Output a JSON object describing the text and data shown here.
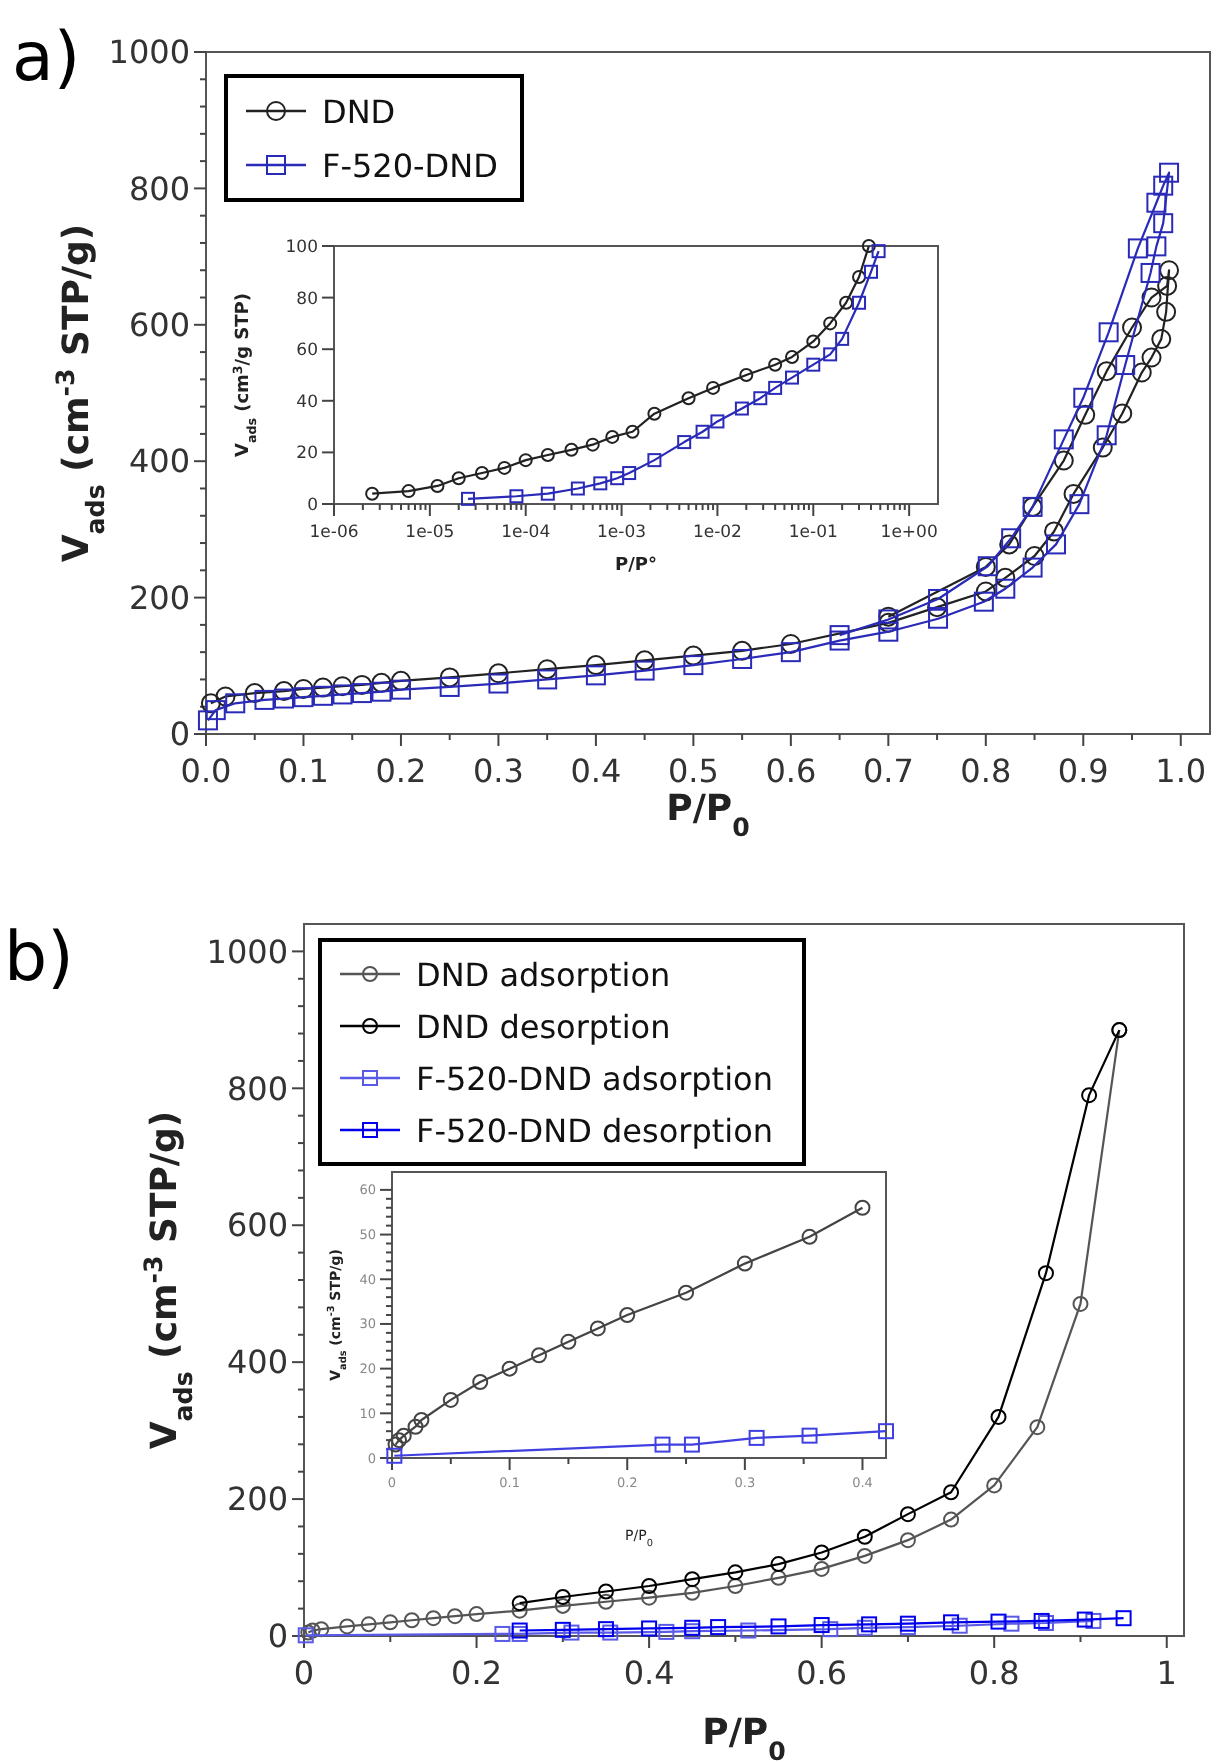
{
  "chart_data": [
    {
      "type": "line",
      "annotations": [
        "a)"
      ],
      "xlabel": "P/P$_{0}$",
      "ylabel": "V$_{ads}$ (cm$^{-3}$ STP/g)",
      "xlim": [
        0,
        1.03
      ],
      "ylim": [
        0,
        1000
      ],
      "xticks": [
        {
          "value": 0,
          "label": "0.0"
        },
        0.1,
        0.2,
        0.3,
        0.4,
        0.5,
        0.6,
        0.7,
        0.8,
        0.9,
        {
          "value": 1,
          "label": "1.0"
        }
      ],
      "yticks": [
        0,
        200,
        400,
        600,
        800,
        1000
      ],
      "legend": "top left",
      "grid": false,
      "series": [
        {
          "name": "DND",
          "color": "#222222",
          "marker": "circle",
          "x": [
            0.005,
            0.02,
            0.05,
            0.08,
            0.1,
            0.12,
            0.14,
            0.16,
            0.18,
            0.2,
            0.25,
            0.3,
            0.35,
            0.4,
            0.45,
            0.5,
            0.55,
            0.6,
            0.7,
            0.75,
            0.8,
            0.82,
            0.85,
            0.87,
            0.89,
            0.92,
            0.94,
            0.96,
            0.97,
            0.98,
            0.985,
            0.988,
            0.986,
            0.97,
            0.95,
            0.924,
            0.902,
            0.88,
            0.848,
            0.824,
            0.8,
            0.7
          ],
          "values": [
            45,
            55,
            60,
            63,
            66,
            68,
            70,
            72,
            75,
            78,
            83,
            89,
            95,
            101,
            108,
            115,
            122,
            132,
            163,
            186,
            209,
            229,
            261,
            297,
            352,
            420,
            470,
            530,
            552,
            579,
            619,
            680,
            657,
            640,
            596,
            532,
            468,
            401,
            333,
            278,
            245,
            172
          ]
        },
        {
          "name": "F-520-DND",
          "color": "#2a2ab8",
          "marker": "square",
          "x": [
            0.002,
            0.01,
            0.03,
            0.06,
            0.08,
            0.1,
            0.12,
            0.14,
            0.16,
            0.18,
            0.2,
            0.25,
            0.3,
            0.35,
            0.4,
            0.45,
            0.5,
            0.55,
            0.6,
            0.65,
            0.7,
            0.751,
            0.798,
            0.82,
            0.848,
            0.872,
            0.896,
            0.924,
            0.943,
            0.969,
            0.975,
            0.982,
            0.988,
            0.982,
            0.975,
            0.956,
            0.926,
            0.9,
            0.88,
            0.848,
            0.826,
            0.802,
            0.751,
            0.7,
            0.65
          ],
          "values": [
            20,
            35,
            45,
            50,
            52,
            54,
            56,
            58,
            60,
            62,
            65,
            69,
            74,
            80,
            86,
            93,
            101,
            110,
            120,
            137,
            150,
            169,
            194,
            213,
            244,
            278,
            337,
            438,
            541,
            676,
            715,
            749,
            823,
            804,
            779,
            712,
            589,
            493,
            432,
            333,
            287,
            246,
            198,
            168,
            145
          ]
        }
      ]
    },
    {
      "type": "line",
      "xlabel": "P/P°",
      "ylabel": "V$_{ads}$ (cm$^{3}$/g STP)",
      "log": "x",
      "xlim": [
        1e-06,
        2
      ],
      "ylim": [
        0,
        100
      ],
      "xticks": [
        {
          "value": 1e-06,
          "label": "1e-06"
        },
        {
          "value": 1e-05,
          "label": "1e-05"
        },
        {
          "value": 0.0001,
          "label": "1e-04"
        },
        {
          "value": 0.001,
          "label": "1e-03"
        },
        {
          "value": 0.01,
          "label": "1e-02"
        },
        {
          "value": 0.1,
          "label": "1e-01"
        },
        {
          "value": 1,
          "label": "1e+00"
        }
      ],
      "yticks": [
        0,
        20,
        40,
        60,
        80,
        100
      ],
      "legend": false,
      "grid": false,
      "series": [
        {
          "color": "#222222",
          "marker": "circle",
          "x": [
            2.5e-06,
            6e-06,
            1.2e-05,
            2e-05,
            3.5e-05,
            6e-05,
            0.0001,
            0.00017,
            0.0003,
            0.0005,
            0.0008,
            0.0013,
            0.0022,
            0.005,
            0.009,
            0.02,
            0.04,
            0.06,
            0.1,
            0.15,
            0.22,
            0.3,
            0.38
          ],
          "values": [
            4,
            5,
            7,
            10,
            12,
            14,
            17,
            19,
            21,
            23,
            26,
            28,
            35,
            41,
            45,
            50,
            54,
            57,
            63,
            70,
            78,
            88,
            100
          ]
        },
        {
          "color": "#2a2ab8",
          "marker": "square",
          "x": [
            2.5e-05,
            8e-05,
            0.00017,
            0.00035,
            0.0006,
            0.0009,
            0.0012,
            0.0022,
            0.0045,
            0.007,
            0.01,
            0.018,
            0.028,
            0.04,
            0.06,
            0.1,
            0.15,
            0.2,
            0.3,
            0.4,
            0.48
          ],
          "values": [
            2,
            3,
            4,
            6,
            8,
            10,
            12,
            17,
            24,
            28,
            32,
            37,
            41,
            45,
            49,
            54,
            58,
            64,
            78,
            90,
            98
          ]
        }
      ]
    },
    {
      "type": "line",
      "annotations": [
        "b)"
      ],
      "xlabel": "P/P$_{0}$",
      "ylabel": "V$_{ads}$ (cm$^{-3}$ STP/g)",
      "xlim": [
        0,
        1.02
      ],
      "ylim": [
        0,
        1040
      ],
      "xticks": [
        0,
        0.2,
        0.4,
        0.6,
        0.8,
        1
      ],
      "yticks": [
        0,
        200,
        400,
        600,
        800,
        1000
      ],
      "legend": "top left",
      "grid": false,
      "series": [
        {
          "name": "DND adsorption",
          "color": "#555555",
          "marker": "circle",
          "x": [
            0.005,
            0.01,
            0.02,
            0.05,
            0.075,
            0.1,
            0.125,
            0.15,
            0.175,
            0.2,
            0.25,
            0.3,
            0.35,
            0.4,
            0.45,
            0.5,
            0.55,
            0.6,
            0.65,
            0.7,
            0.75,
            0.8,
            0.85,
            0.9,
            0.945
          ],
          "values": [
            5,
            8,
            10,
            14,
            17,
            20,
            23,
            26,
            29,
            32,
            37,
            44,
            50,
            56,
            63,
            73,
            85,
            98,
            117,
            140,
            170,
            220,
            305,
            485,
            885
          ]
        },
        {
          "name": "DND desorption",
          "color": "#000000",
          "marker": "circle",
          "x": [
            0.945,
            0.91,
            0.86,
            0.805,
            0.75,
            0.7,
            0.65,
            0.6,
            0.55,
            0.5,
            0.45,
            0.4,
            0.35,
            0.3,
            0.25
          ],
          "values": [
            885,
            790,
            530,
            320,
            210,
            178,
            145,
            122,
            105,
            93,
            83,
            73,
            65,
            57,
            48
          ]
        },
        {
          "name": "F-520-DND adsorption",
          "color": "#5a5ae6",
          "marker": "square",
          "x": [
            0.002,
            0.23,
            0.25,
            0.31,
            0.355,
            0.42,
            0.45,
            0.515,
            0.61,
            0.65,
            0.7,
            0.76,
            0.82,
            0.86,
            0.915
          ],
          "values": [
            1,
            3,
            3,
            5,
            5,
            6,
            7,
            8,
            10,
            12,
            13,
            15,
            18,
            19,
            22
          ]
        },
        {
          "name": "F-520-DND desorption",
          "color": "#0000ee",
          "marker": "square",
          "x": [
            0.95,
            0.905,
            0.855,
            0.805,
            0.75,
            0.7,
            0.655,
            0.6,
            0.55,
            0.48,
            0.45,
            0.4,
            0.35,
            0.3,
            0.25
          ],
          "values": [
            26,
            24,
            22,
            21,
            20,
            18,
            17,
            16,
            14,
            13,
            12,
            11,
            10,
            9,
            8
          ]
        }
      ]
    },
    {
      "type": "line",
      "xlabel": "P/P$_{0}$",
      "ylabel": "V$_{ads}$ (cm$^{-3}$ STP/g)",
      "xlim": [
        0,
        0.42
      ],
      "ylim": [
        0,
        64
      ],
      "xticks": [
        0,
        0.1,
        0.2,
        0.3,
        0.4
      ],
      "yticks": [
        0,
        10,
        20,
        30,
        40,
        50,
        60
      ],
      "legend": false,
      "grid": false,
      "series": [
        {
          "color": "#444444",
          "marker": "circle",
          "x": [
            0.003,
            0.006,
            0.01,
            0.02,
            0.025,
            0.05,
            0.075,
            0.1,
            0.125,
            0.15,
            0.175,
            0.2,
            0.25,
            0.3,
            0.355,
            0.4
          ],
          "values": [
            3,
            4,
            5,
            7,
            8.5,
            13,
            17,
            20,
            23,
            26,
            29,
            32,
            37,
            43.5,
            49.5,
            56
          ]
        },
        {
          "color": "#4040e0",
          "marker": "square",
          "x": [
            0.002,
            0.23,
            0.255,
            0.31,
            0.355,
            0.42
          ],
          "values": [
            0.5,
            3,
            3,
            4.5,
            5,
            6
          ]
        }
      ]
    }
  ]
}
